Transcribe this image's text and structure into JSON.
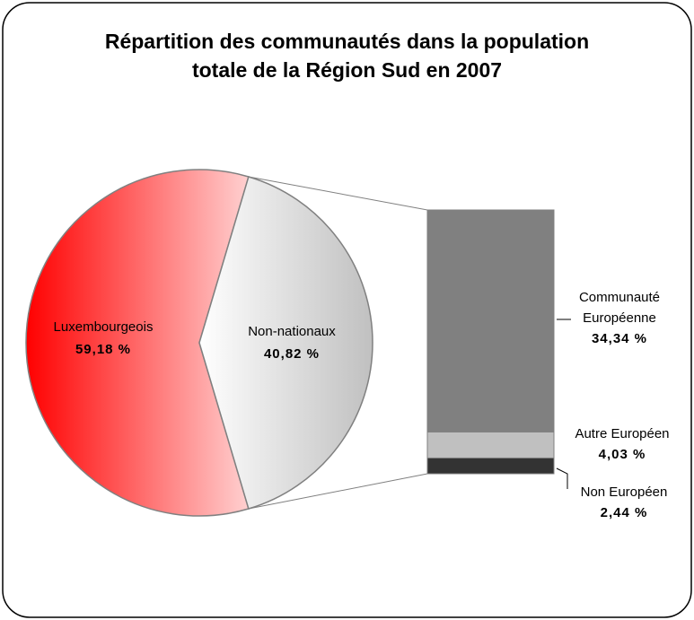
{
  "chart_data": {
    "type": "pie",
    "title": "Répartition des communautés dans la population totale de la Région Sud en 2007",
    "categories": [
      "Luxembourgeois",
      "Non-nationaux"
    ],
    "values": [
      59.18,
      40.82
    ],
    "value_labels": [
      "59,18 %",
      "40,82 %"
    ],
    "colors": [
      "#ff0000",
      "#c0c0c0"
    ],
    "breakdown": {
      "categories": [
        "Communauté Européenne",
        "Autre Européen",
        "Non Européen"
      ],
      "values": [
        34.34,
        4.03,
        2.44
      ],
      "value_labels": [
        "34,34 %",
        "4,03 %",
        "2,44 %"
      ],
      "colors": [
        "#808080",
        "#c0c0c0",
        "#333333"
      ]
    }
  }
}
